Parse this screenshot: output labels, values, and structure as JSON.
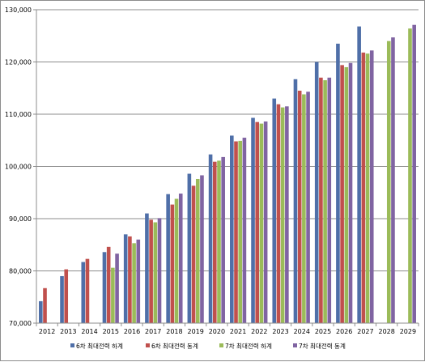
{
  "chart_data": {
    "type": "bar",
    "categories": [
      "2012",
      "2013",
      "2014",
      "2015",
      "2016",
      "2017",
      "2018",
      "2019",
      "2020",
      "2021",
      "2022",
      "2023",
      "2024",
      "2025",
      "2026",
      "2027",
      "2028",
      "2029"
    ],
    "ylim": [
      70000,
      130000
    ],
    "yticks": [
      70000,
      80000,
      90000,
      100000,
      110000,
      120000,
      130000
    ],
    "ytick_labels": [
      "70,000",
      "80,000",
      "90,000",
      "100,000",
      "110,000",
      "120,000",
      "130,000"
    ],
    "grid": true,
    "legend_position": "bottom",
    "series": [
      {
        "name": "6차 최대전력 하계",
        "color": "#4f6fa8",
        "values": [
          74200,
          79000,
          81700,
          83600,
          87000,
          91000,
          94700,
          98600,
          102300,
          105900,
          109300,
          113000,
          116700,
          120000,
          123500,
          126800,
          null,
          null
        ]
      },
      {
        "name": "6차 최대전력 동계",
        "color": "#c0504d",
        "values": [
          76700,
          80300,
          82300,
          84600,
          86600,
          89800,
          92700,
          96300,
          100900,
          104800,
          108500,
          111900,
          114500,
          117000,
          119400,
          121800,
          null,
          null
        ]
      },
      {
        "name": "7차 최대전력 하계",
        "color": "#9bbb59",
        "values": [
          null,
          null,
          null,
          80600,
          85300,
          89300,
          93800,
          97600,
          101100,
          104900,
          108200,
          111300,
          113800,
          116500,
          119000,
          121600,
          124000,
          126400
        ]
      },
      {
        "name": "7차 최대전력 동계",
        "color": "#8064a2",
        "values": [
          null,
          null,
          null,
          83300,
          86000,
          90100,
          94800,
          98300,
          101800,
          105500,
          108600,
          111500,
          114300,
          117000,
          119800,
          122200,
          124700,
          127100
        ]
      }
    ]
  }
}
